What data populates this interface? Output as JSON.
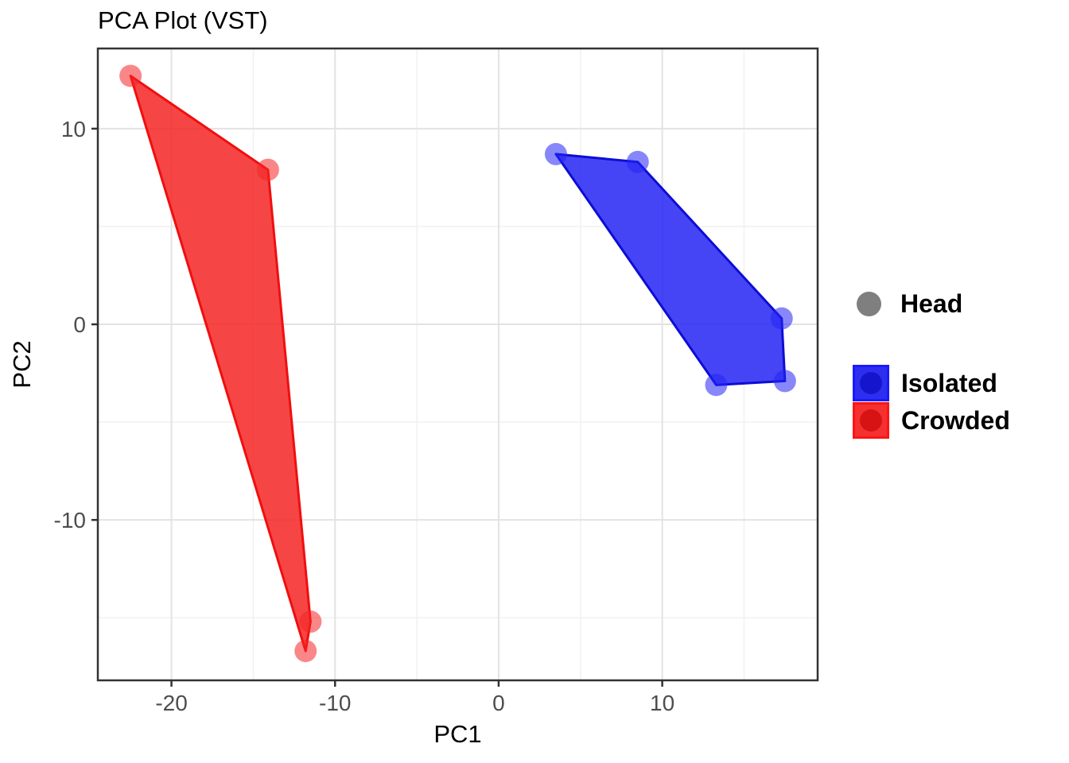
{
  "title": "PCA Plot (VST)",
  "legend": {
    "shape_entry": {
      "label": "Head",
      "color": "#7F7F7F"
    },
    "fill_entries": [
      {
        "label": "Isolated",
        "fill": "#2E2EEE",
        "border": "#1A1AFF",
        "dot": "#1515CC"
      },
      {
        "label": "Crowded",
        "fill": "#F53030",
        "border": "#FF1414",
        "dot": "#D61414"
      }
    ]
  },
  "chart_data": {
    "type": "scatter",
    "title": "PCA Plot (VST)",
    "xlabel": "PC1",
    "ylabel": "PC2",
    "xlim": [
      -24.5,
      19.5
    ],
    "ylim": [
      -18.2,
      14.1
    ],
    "x_major_ticks": [
      -20,
      -10,
      0,
      10
    ],
    "x_minor_ticks": [
      -15,
      -5,
      5,
      15
    ],
    "y_major_ticks": [
      -10,
      0,
      10
    ],
    "y_minor_ticks": [
      -15,
      -5,
      5
    ],
    "grid": true,
    "legend_position": "right",
    "point_alpha": 0.55,
    "hull_alpha": 0.85,
    "series": [
      {
        "name": "Isolated",
        "color": "#2424F5",
        "stroke": "#0D0DD6",
        "points": [
          [
            3.5,
            8.7
          ],
          [
            8.5,
            8.3
          ],
          [
            17.3,
            0.3
          ],
          [
            17.5,
            -2.9
          ],
          [
            13.3,
            -3.1
          ]
        ],
        "hull": [
          [
            3.5,
            8.7
          ],
          [
            8.5,
            8.3
          ],
          [
            17.3,
            0.3
          ],
          [
            17.5,
            -2.9
          ],
          [
            13.3,
            -3.1
          ]
        ]
      },
      {
        "name": "Crowded",
        "color": "#F52424",
        "stroke": "#F00F0F",
        "points": [
          [
            -22.5,
            12.7
          ],
          [
            -14.1,
            7.9
          ],
          [
            -11.5,
            -15.2
          ],
          [
            -11.8,
            -16.7
          ]
        ],
        "hull": [
          [
            -22.5,
            12.7
          ],
          [
            -14.1,
            7.9
          ],
          [
            -11.5,
            -15.2
          ],
          [
            -11.8,
            -16.7
          ]
        ]
      }
    ],
    "shape_legend_entry": {
      "label": "Head",
      "color": "#7F7F7F"
    },
    "colors": {
      "panel_border": "#333333",
      "grid_major": "#E3E3E3",
      "grid_minor": "#F1F1F1",
      "tick_label": "#4D4D4D",
      "axis_title": "#000000"
    }
  }
}
